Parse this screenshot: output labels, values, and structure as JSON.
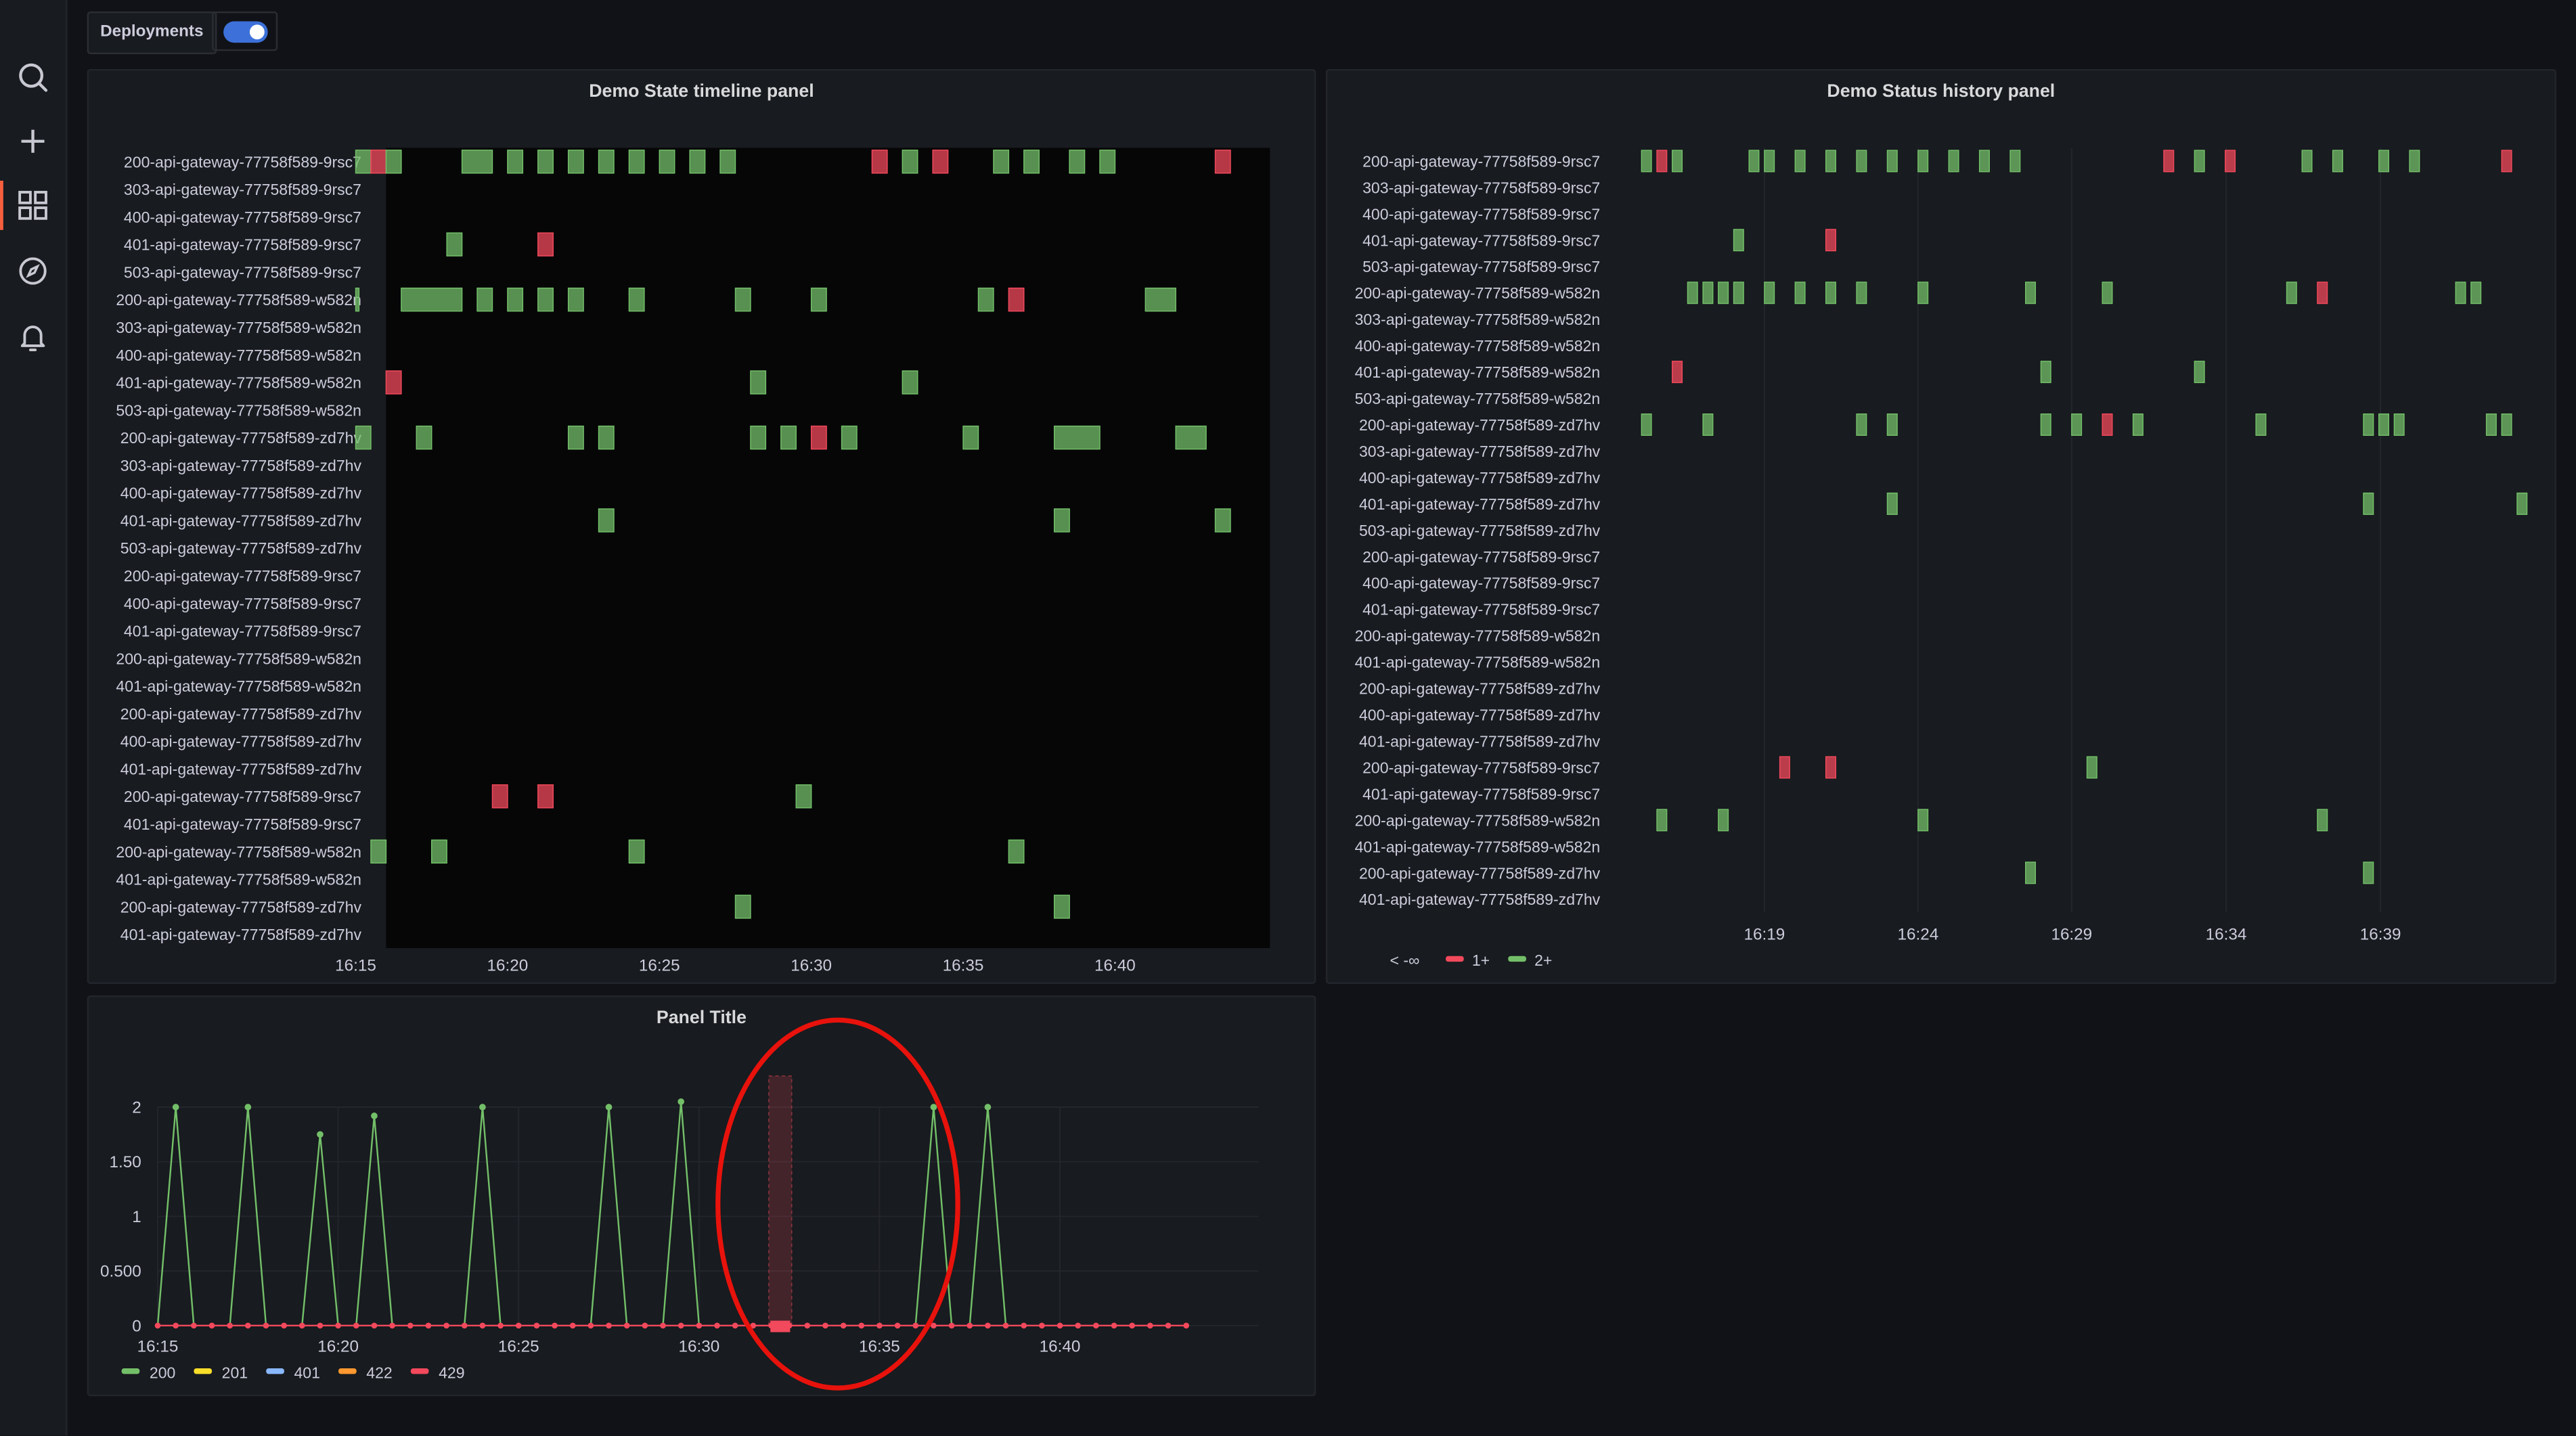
{
  "sidebar": {
    "icons": [
      "search-icon",
      "plus-icon",
      "dashboards-icon",
      "explore-icon",
      "bell-icon"
    ]
  },
  "variable_bar": {
    "label": "Deployments",
    "toggle_on": true
  },
  "colors": {
    "green": "#73bf69",
    "red": "#f2495c",
    "panel_bg": "#181b1f",
    "toggle": "#3d71d9"
  },
  "panels": {
    "timeline": {
      "title": "Demo State timeline panel"
    },
    "history": {
      "title": "Demo Status history panel"
    },
    "timeseries": {
      "title": "Panel Title"
    }
  },
  "chart_data": [
    {
      "type": "state-timeline",
      "title": "Demo State timeline panel",
      "rows": [
        "200-api-gateway-77758f589-9rsc7",
        "303-api-gateway-77758f589-9rsc7",
        "400-api-gateway-77758f589-9rsc7",
        "401-api-gateway-77758f589-9rsc7",
        "503-api-gateway-77758f589-9rsc7",
        "200-api-gateway-77758f589-w582n",
        "303-api-gateway-77758f589-w582n",
        "400-api-gateway-77758f589-w582n",
        "401-api-gateway-77758f589-w582n",
        "503-api-gateway-77758f589-w582n",
        "200-api-gateway-77758f589-zd7hv",
        "303-api-gateway-77758f589-zd7hv",
        "400-api-gateway-77758f589-zd7hv",
        "401-api-gateway-77758f589-zd7hv",
        "503-api-gateway-77758f589-zd7hv",
        "200-api-gateway-77758f589-9rsc7",
        "400-api-gateway-77758f589-9rsc7",
        "401-api-gateway-77758f589-9rsc7",
        "200-api-gateway-77758f589-w582n",
        "401-api-gateway-77758f589-w582n",
        "200-api-gateway-77758f589-zd7hv",
        "400-api-gateway-77758f589-zd7hv",
        "401-api-gateway-77758f589-zd7hv",
        "200-api-gateway-77758f589-9rsc7",
        "401-api-gateway-77758f589-9rsc7",
        "200-api-gateway-77758f589-w582n",
        "401-api-gateway-77758f589-w582n",
        "200-api-gateway-77758f589-zd7hv",
        "401-api-gateway-77758f589-zd7hv"
      ],
      "x_ticks": [
        "16:15",
        "16:20",
        "16:25",
        "16:30",
        "16:35",
        "16:40"
      ],
      "x_range_minutes": [
        16.0,
        45.1
      ],
      "segments": [
        [
          [
            15.0,
            15.5,
            "g"
          ],
          [
            15.5,
            16.0,
            "r"
          ],
          [
            16.0,
            16.5,
            "g"
          ],
          [
            18.5,
            19.5,
            "g"
          ],
          [
            20.0,
            20.5,
            "g"
          ],
          [
            21.0,
            21.5,
            "g"
          ],
          [
            22.0,
            22.5,
            "g"
          ],
          [
            23.0,
            23.5,
            "g"
          ],
          [
            24.0,
            24.5,
            "g"
          ],
          [
            25.0,
            25.5,
            "g"
          ],
          [
            26.0,
            26.5,
            "g"
          ],
          [
            27.0,
            27.5,
            "g"
          ],
          [
            32.0,
            32.5,
            "r"
          ],
          [
            33.0,
            33.5,
            "g"
          ],
          [
            34.0,
            34.5,
            "r"
          ],
          [
            36.0,
            36.5,
            "g"
          ],
          [
            37.0,
            37.5,
            "g"
          ],
          [
            38.5,
            39.0,
            "g"
          ],
          [
            39.5,
            40.0,
            "g"
          ],
          [
            43.3,
            43.8,
            "r"
          ]
        ],
        [],
        [],
        [
          [
            18.0,
            18.5,
            "g"
          ],
          [
            21.0,
            21.5,
            "r"
          ]
        ],
        [],
        [
          [
            15.0,
            15.1,
            "g"
          ],
          [
            16.5,
            18.5,
            "g"
          ],
          [
            19.0,
            19.5,
            "g"
          ],
          [
            20.0,
            20.5,
            "g"
          ],
          [
            21.0,
            21.5,
            "g"
          ],
          [
            22.0,
            22.5,
            "g"
          ],
          [
            24.0,
            24.5,
            "g"
          ],
          [
            27.5,
            28.0,
            "g"
          ],
          [
            30.0,
            30.5,
            "g"
          ],
          [
            35.5,
            36.0,
            "g"
          ],
          [
            36.5,
            37.0,
            "r"
          ],
          [
            41.0,
            42.0,
            "g"
          ]
        ],
        [],
        [],
        [
          [
            16.0,
            16.5,
            "r"
          ],
          [
            28.0,
            28.5,
            "g"
          ],
          [
            33.0,
            33.5,
            "g"
          ]
        ],
        [],
        [
          [
            15.0,
            15.5,
            "g"
          ],
          [
            17.0,
            17.5,
            "g"
          ],
          [
            22.0,
            22.5,
            "g"
          ],
          [
            23.0,
            23.5,
            "g"
          ],
          [
            28.0,
            28.5,
            "g"
          ],
          [
            29.0,
            29.5,
            "g"
          ],
          [
            30.0,
            30.5,
            "r"
          ],
          [
            31.0,
            31.5,
            "g"
          ],
          [
            35.0,
            35.5,
            "g"
          ],
          [
            38.0,
            39.5,
            "g"
          ],
          [
            42.0,
            43.0,
            "g"
          ]
        ],
        [],
        [],
        [
          [
            23.0,
            23.5,
            "g"
          ],
          [
            38.0,
            38.5,
            "g"
          ],
          [
            43.3,
            43.8,
            "g"
          ]
        ],
        [],
        [],
        [],
        [],
        [],
        [],
        [],
        [],
        [],
        [
          [
            19.5,
            20.0,
            "r"
          ],
          [
            21.0,
            21.5,
            "r"
          ],
          [
            29.5,
            30.0,
            "g"
          ]
        ],
        [],
        [
          [
            15.5,
            16.0,
            "g"
          ],
          [
            17.5,
            18.0,
            "g"
          ],
          [
            24.0,
            24.5,
            "g"
          ],
          [
            36.5,
            37.0,
            "g"
          ]
        ],
        [],
        [
          [
            27.5,
            28.0,
            "g"
          ],
          [
            38.0,
            38.5,
            "g"
          ]
        ],
        []
      ]
    },
    {
      "type": "status-history",
      "title": "Demo Status history panel",
      "rows": [
        "200-api-gateway-77758f589-9rsc7",
        "303-api-gateway-77758f589-9rsc7",
        "400-api-gateway-77758f589-9rsc7",
        "401-api-gateway-77758f589-9rsc7",
        "503-api-gateway-77758f589-9rsc7",
        "200-api-gateway-77758f589-w582n",
        "303-api-gateway-77758f589-w582n",
        "400-api-gateway-77758f589-w582n",
        "401-api-gateway-77758f589-w582n",
        "503-api-gateway-77758f589-w582n",
        "200-api-gateway-77758f589-zd7hv",
        "303-api-gateway-77758f589-zd7hv",
        "400-api-gateway-77758f589-zd7hv",
        "401-api-gateway-77758f589-zd7hv",
        "503-api-gateway-77758f589-zd7hv",
        "200-api-gateway-77758f589-9rsc7",
        "400-api-gateway-77758f589-9rsc7",
        "401-api-gateway-77758f589-9rsc7",
        "200-api-gateway-77758f589-w582n",
        "401-api-gateway-77758f589-w582n",
        "200-api-gateway-77758f589-zd7hv",
        "400-api-gateway-77758f589-zd7hv",
        "401-api-gateway-77758f589-zd7hv",
        "200-api-gateway-77758f589-9rsc7",
        "401-api-gateway-77758f589-9rsc7",
        "200-api-gateway-77758f589-w582n",
        "401-api-gateway-77758f589-w582n",
        "200-api-gateway-77758f589-zd7hv",
        "401-api-gateway-77758f589-zd7hv"
      ],
      "x_ticks": [
        "16:19",
        "16:24",
        "16:29",
        "16:34",
        "16:39"
      ],
      "cells": [
        [
          [
            15.0,
            "g"
          ],
          [
            15.5,
            "r"
          ],
          [
            16.0,
            "g"
          ],
          [
            18.5,
            "g"
          ],
          [
            19.0,
            "g"
          ],
          [
            20.0,
            "g"
          ],
          [
            21.0,
            "g"
          ],
          [
            22.0,
            "g"
          ],
          [
            23.0,
            "g"
          ],
          [
            24.0,
            "g"
          ],
          [
            25.0,
            "g"
          ],
          [
            26.0,
            "g"
          ],
          [
            27.0,
            "g"
          ],
          [
            32.0,
            "r"
          ],
          [
            33.0,
            "g"
          ],
          [
            34.0,
            "r"
          ],
          [
            36.5,
            "g"
          ],
          [
            37.5,
            "g"
          ],
          [
            39.0,
            "g"
          ],
          [
            40.0,
            "g"
          ],
          [
            43.0,
            "r"
          ]
        ],
        [],
        [],
        [
          [
            18.0,
            "g"
          ],
          [
            21.0,
            "r"
          ]
        ],
        [],
        [
          [
            16.5,
            "g"
          ],
          [
            17.0,
            "g"
          ],
          [
            17.5,
            "g"
          ],
          [
            18.0,
            "g"
          ],
          [
            19.0,
            "g"
          ],
          [
            20.0,
            "g"
          ],
          [
            21.0,
            "g"
          ],
          [
            22.0,
            "g"
          ],
          [
            24.0,
            "g"
          ],
          [
            27.5,
            "g"
          ],
          [
            30.0,
            "g"
          ],
          [
            36.0,
            "g"
          ],
          [
            37.0,
            "r"
          ],
          [
            41.5,
            "g"
          ],
          [
            42.0,
            "g"
          ]
        ],
        [],
        [],
        [
          [
            16.0,
            "r"
          ],
          [
            28.0,
            "g"
          ],
          [
            33.0,
            "g"
          ]
        ],
        [],
        [
          [
            15.0,
            "g"
          ],
          [
            17.0,
            "g"
          ],
          [
            22.0,
            "g"
          ],
          [
            23.0,
            "g"
          ],
          [
            28.0,
            "g"
          ],
          [
            29.0,
            "g"
          ],
          [
            30.0,
            "r"
          ],
          [
            31.0,
            "g"
          ],
          [
            35.0,
            "g"
          ],
          [
            38.5,
            "g"
          ],
          [
            39.0,
            "g"
          ],
          [
            39.5,
            "g"
          ],
          [
            42.5,
            "g"
          ],
          [
            43.0,
            "g"
          ]
        ],
        [],
        [],
        [
          [
            23.0,
            "g"
          ],
          [
            38.5,
            "g"
          ],
          [
            43.5,
            "g"
          ]
        ],
        [],
        [],
        [],
        [],
        [],
        [],
        [],
        [],
        [],
        [
          [
            19.5,
            "r"
          ],
          [
            21.0,
            "r"
          ],
          [
            29.5,
            "g"
          ]
        ],
        [],
        [
          [
            15.5,
            "g"
          ],
          [
            17.5,
            "g"
          ],
          [
            24.0,
            "g"
          ],
          [
            37.0,
            "g"
          ]
        ],
        [],
        [
          [
            27.5,
            "g"
          ],
          [
            38.5,
            "g"
          ]
        ],
        []
      ],
      "legend": [
        {
          "label": "< -∞",
          "color": ""
        },
        {
          "label": "1+",
          "color": "#f2495c"
        },
        {
          "label": "2+",
          "color": "#73bf69"
        }
      ]
    },
    {
      "type": "line",
      "title": "Panel Title",
      "x_ticks": [
        "16:15",
        "16:20",
        "16:25",
        "16:30",
        "16:35",
        "16:40"
      ],
      "y_ticks": [
        "0",
        "0.500",
        "1",
        "1.50",
        "2"
      ],
      "ylim": [
        0,
        2
      ],
      "x_range_minutes": [
        15.0,
        45.5
      ],
      "series": [
        {
          "name": "200",
          "color": "#73bf69",
          "peaks": [
            [
              15.5,
              2
            ],
            [
              17.5,
              2
            ],
            [
              19.5,
              1.75
            ],
            [
              21.0,
              1.92
            ],
            [
              24.0,
              2
            ],
            [
              27.5,
              2
            ],
            [
              29.5,
              2.05
            ],
            [
              36.5,
              2
            ],
            [
              38.0,
              2
            ]
          ]
        },
        {
          "name": "201",
          "color": "#fade2a",
          "peaks": []
        },
        {
          "name": "401",
          "color": "#8ab8ff",
          "peaks": []
        },
        {
          "name": "422",
          "color": "#ff9830",
          "peaks": []
        },
        {
          "name": "429",
          "color": "#f2495c",
          "peaks": []
        }
      ],
      "sample_start": 15.0,
      "sample_step": 0.5,
      "sample_count": 58,
      "highlight_x": 32.25
    }
  ]
}
